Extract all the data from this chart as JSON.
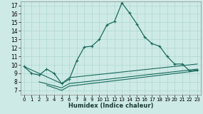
{
  "xlabel": "Humidex (Indice chaleur)",
  "bg_color": "#ceeae6",
  "line_color": "#1a6b5e",
  "grid_color": "#aed6d0",
  "xlim": [
    -0.5,
    23.5
  ],
  "ylim": [
    6.5,
    17.5
  ],
  "xticks": [
    0,
    1,
    2,
    3,
    4,
    5,
    6,
    7,
    8,
    9,
    10,
    11,
    12,
    13,
    14,
    15,
    16,
    17,
    18,
    19,
    20,
    21,
    22,
    23
  ],
  "yticks": [
    7,
    8,
    9,
    10,
    11,
    12,
    13,
    14,
    15,
    16,
    17
  ],
  "series_main": [
    [
      0,
      9.8
    ],
    [
      1,
      9.0
    ],
    [
      2,
      8.8
    ],
    [
      3,
      9.5
    ],
    [
      4,
      9.0
    ],
    [
      5,
      7.8
    ],
    [
      6,
      8.3
    ],
    [
      7,
      10.5
    ],
    [
      8,
      12.1
    ],
    [
      9,
      12.2
    ],
    [
      10,
      13.0
    ],
    [
      11,
      14.7
    ],
    [
      12,
      15.1
    ],
    [
      13,
      17.3
    ],
    [
      14,
      16.1
    ],
    [
      15,
      14.8
    ],
    [
      16,
      13.3
    ],
    [
      17,
      12.5
    ],
    [
      18,
      12.2
    ],
    [
      19,
      11.0
    ],
    [
      20,
      10.1
    ],
    [
      21,
      10.1
    ],
    [
      22,
      9.3
    ],
    [
      23,
      9.4
    ]
  ],
  "series_flat1": [
    [
      0,
      9.8
    ],
    [
      5,
      7.8
    ],
    [
      6,
      8.5
    ],
    [
      23,
      10.1
    ]
  ],
  "series_flat2": [
    [
      2,
      8.0
    ],
    [
      5,
      7.3
    ],
    [
      6,
      7.8
    ],
    [
      23,
      9.5
    ]
  ],
  "series_flat3": [
    [
      3,
      7.6
    ],
    [
      5,
      7.0
    ],
    [
      6,
      7.5
    ],
    [
      23,
      9.3
    ]
  ]
}
